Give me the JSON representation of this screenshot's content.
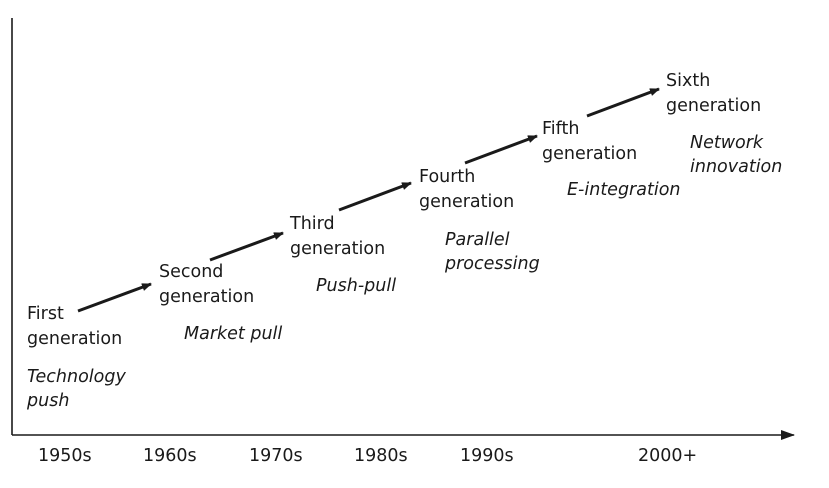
{
  "generations": [
    {
      "title": "First\ngeneration",
      "model": "Technology\npush"
    },
    {
      "title": "Second\ngeneration",
      "model": "Market pull"
    },
    {
      "title": "Third\ngeneration",
      "model": "Push-pull"
    },
    {
      "title": "Fourth\ngeneration",
      "model": "Parallel\nprocessing"
    },
    {
      "title": "Fifth\ngeneration",
      "model": "E-integration"
    },
    {
      "title": "Sixth\ngeneration",
      "model": "Network\ninnovation"
    }
  ],
  "timeline": {
    "decades": [
      "1950s",
      "1960s",
      "1970s",
      "1980s",
      "1990s",
      "2000+"
    ]
  },
  "colors": {
    "ink": "#1a1a1a",
    "background": "#ffffff"
  }
}
